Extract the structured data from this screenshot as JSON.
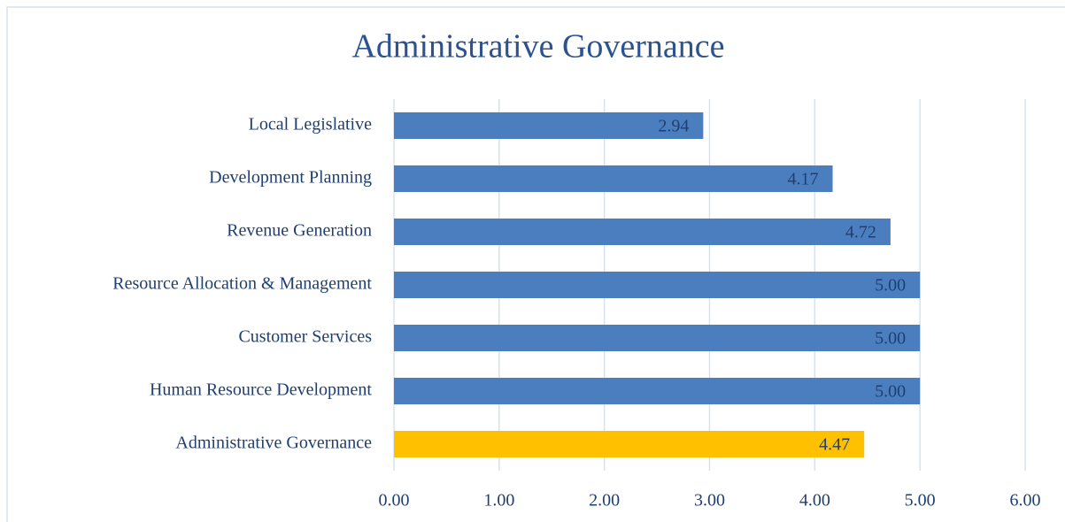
{
  "chart_data": {
    "type": "hbar",
    "title": "Administrative Governance",
    "categories": [
      "Local Legislative",
      "Development Planning",
      "Revenue Generation",
      "Resource Allocation & Management",
      "Customer Services",
      "Human Resource Development",
      "Administrative Governance"
    ],
    "values": [
      2.94,
      4.17,
      4.72,
      5,
      5,
      5,
      4.47
    ],
    "value_labels": [
      "2.94",
      "4.17",
      "4.72",
      "5.00",
      "5.00",
      "5.00",
      "4.47"
    ],
    "colors": [
      "#4a7ebf",
      "#4a7ebf",
      "#4a7ebf",
      "#4a7ebf",
      "#4a7ebf",
      "#4a7ebf",
      "#ffc000"
    ],
    "xlim": [
      0,
      6
    ],
    "xticks": [
      {
        "value": 0,
        "label": "0.00"
      },
      {
        "value": 1,
        "label": "1.00"
      },
      {
        "value": 2,
        "label": "2.00"
      },
      {
        "value": 3,
        "label": "3.00"
      },
      {
        "value": 4,
        "label": "4.00"
      },
      {
        "value": 5,
        "label": "5.00"
      },
      {
        "value": 6,
        "label": "6.00"
      }
    ],
    "grid": true
  }
}
